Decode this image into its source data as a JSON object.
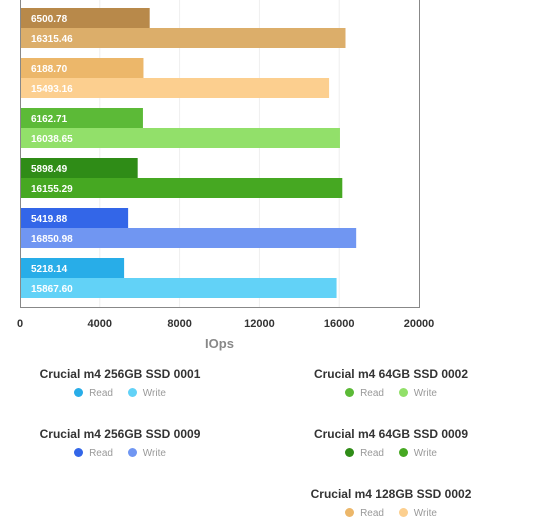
{
  "chart_data": {
    "type": "bar",
    "orientation": "horizontal",
    "xlabel": "IOps",
    "xlim": [
      0,
      20000
    ],
    "xticks": [
      "0",
      "4000",
      "8000",
      "12000",
      "16000",
      "20000"
    ],
    "grid": true,
    "groups": [
      {
        "read_label": "6500.78",
        "write_label": "16315.46",
        "read": 6500.78,
        "write": 16315.46,
        "read_color": "#b8894a",
        "write_color": "#dcae6a"
      },
      {
        "read_label": "6188.70",
        "write_label": "15493.16",
        "read": 6188.7,
        "write": 15493.16,
        "read_color": "#ecb76a",
        "write_color": "#fccf8f"
      },
      {
        "read_label": "6162.71",
        "write_label": "16038.65",
        "read": 6162.71,
        "write": 16038.65,
        "read_color": "#5cba37",
        "write_color": "#92e06a"
      },
      {
        "read_label": "5898.49",
        "write_label": "16155.29",
        "read": 5898.49,
        "write": 16155.29,
        "read_color": "#2f8c17",
        "write_color": "#46a822"
      },
      {
        "read_label": "5419.88",
        "write_label": "16850.98",
        "read": 5419.88,
        "write": 16850.98,
        "read_color": "#3366e8",
        "write_color": "#7096f2"
      },
      {
        "read_label": "5218.14",
        "write_label": "15867.60",
        "read": 5218.14,
        "write": 15867.6,
        "read_color": "#28ade8",
        "write_color": "#62d2f7"
      }
    ]
  },
  "legend": [
    {
      "title": "Crucial m4 256GB SSD 0001",
      "read_label": "Read",
      "write_label": "Write",
      "read_color": "#28ade8",
      "write_color": "#62d2f7"
    },
    {
      "title": "Crucial m4 64GB SSD 0002",
      "read_label": "Read",
      "write_label": "Write",
      "read_color": "#5cba37",
      "write_color": "#92e06a"
    },
    {
      "title": "Crucial m4 256GB SSD 0009",
      "read_label": "Read",
      "write_label": "Write",
      "read_color": "#3366e8",
      "write_color": "#7096f2"
    },
    {
      "title": "Crucial m4 64GB SSD 0009",
      "read_label": "Read",
      "write_label": "Write",
      "read_color": "#2f8c17",
      "write_color": "#46a822"
    },
    {
      "title": "Crucial m4 128GB SSD 0002",
      "read_label": "Read",
      "write_label": "Write",
      "read_color": "#ecb76a",
      "write_color": "#fccf8f"
    }
  ]
}
